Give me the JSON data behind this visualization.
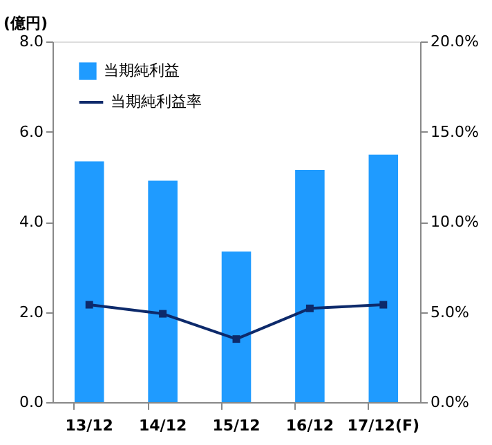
{
  "chart_data": {
    "type": "bar",
    "ylabel": "(億円)",
    "categories": [
      "13/12",
      "14/12",
      "15/12",
      "16/12",
      "17/12(F)"
    ],
    "series": [
      {
        "name": "当期純利益",
        "color": "#1f9bff",
        "values": [
          5.34,
          4.91,
          3.34,
          5.15,
          5.49
        ]
      },
      {
        "name": "当期純利益率",
        "type": "line",
        "axis": "y2",
        "color": "#0d2a6b",
        "marker": "square",
        "line_style": "solid",
        "values": [
          5.4,
          4.9,
          3.5,
          5.2,
          5.4
        ]
      }
    ],
    "ylim": [
      0,
      8
    ],
    "yticks": [
      {
        "value": 0,
        "label": "0.0"
      },
      {
        "value": 2,
        "label": "2.0"
      },
      {
        "value": 4,
        "label": "4.0"
      },
      {
        "value": 6,
        "label": "6.0"
      },
      {
        "value": 8,
        "label": "8.0"
      }
    ],
    "y2lim": [
      0,
      20
    ],
    "y2ticks": [
      {
        "value": 0,
        "label": "0.0%"
      },
      {
        "value": 5,
        "label": "5.0%"
      },
      {
        "value": 10,
        "label": "10.0%"
      },
      {
        "value": 15,
        "label": "15.0%"
      },
      {
        "value": 20,
        "label": "20.0%"
      }
    ],
    "legend": "top left",
    "grid": false
  }
}
